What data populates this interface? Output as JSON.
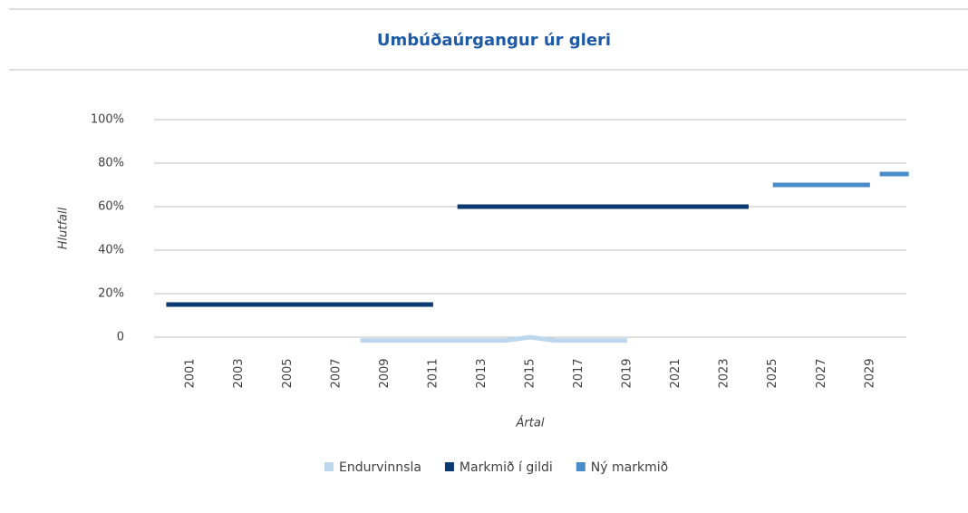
{
  "chart_data": {
    "type": "line",
    "title": "Umbúðaúrgangur úr gleri",
    "ylabel": "Hlutfall",
    "xlabel": "Ártal",
    "xlim": [
      1999.5,
      2030.5
    ],
    "xticks": [
      2001,
      2003,
      2005,
      2007,
      2009,
      2011,
      2013,
      2015,
      2017,
      2019,
      2021,
      2023,
      2025,
      2027,
      2029
    ],
    "ylim": [
      0,
      100
    ],
    "yticks": [
      0,
      {
        "value": 20,
        "label": "20%"
      },
      {
        "value": 40,
        "label": "40%"
      },
      {
        "value": 60,
        "label": "60%"
      },
      {
        "value": 80,
        "label": "80%"
      },
      {
        "value": 100,
        "label": "100%"
      }
    ],
    "grid": true,
    "series": [
      {
        "name": "Endurvinnsla",
        "color": "#bdd7ee",
        "x": [
          2008,
          2014,
          2015,
          2016,
          2019
        ],
        "values": [
          -1.5,
          -1.5,
          0,
          -1.5,
          -1.5
        ]
      },
      {
        "name": "Markmið í gildi",
        "color": "#0b3a73",
        "x": [
          2000,
          2011,
          null,
          2012,
          2024
        ],
        "values": [
          15,
          15,
          null,
          60,
          60
        ]
      },
      {
        "name": "Ný markmið",
        "color": "#4a8bc9",
        "x": [
          2025,
          2029,
          null,
          2030
        ],
        "values": [
          70,
          70,
          null,
          75
        ]
      }
    ]
  }
}
